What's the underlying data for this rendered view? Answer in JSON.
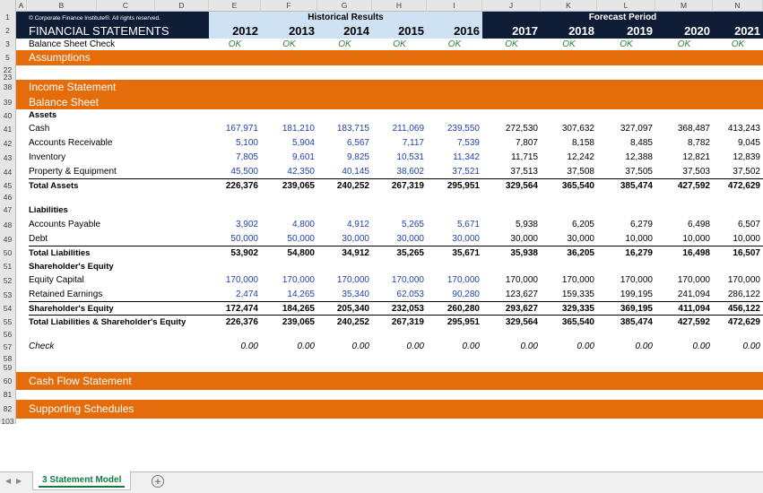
{
  "columns": [
    "A",
    "B",
    "C",
    "D",
    "E",
    "F",
    "G",
    "H",
    "I",
    "J",
    "K",
    "L",
    "M",
    "N"
  ],
  "header": {
    "copyright": "© Corporate Finance Institute®. All rights reserved.",
    "historical_label": "Historical Results",
    "forecast_label": "Forecast Period",
    "title": "FINANCIAL STATEMENTS",
    "years": [
      "2012",
      "2013",
      "2014",
      "2015",
      "2016",
      "2017",
      "2018",
      "2019",
      "2020",
      "2021"
    ]
  },
  "check_row": {
    "label": "Balance Sheet Check",
    "values": [
      "OK",
      "OK",
      "OK",
      "OK",
      "OK",
      "OK",
      "OK",
      "OK",
      "OK",
      "OK"
    ]
  },
  "sections": {
    "assumptions": "Assumptions",
    "income_statement": "Income Statement",
    "balance_sheet": "Balance Sheet",
    "cash_flow": "Cash Flow Statement",
    "supporting": "Supporting Schedules"
  },
  "rows": [
    {
      "n": "1"
    },
    {
      "n": "2"
    },
    {
      "n": "3"
    },
    {
      "n": "5"
    },
    {
      "n": "22"
    },
    {
      "n": "23"
    },
    {
      "n": "38"
    },
    {
      "n": "39"
    },
    {
      "n": "40"
    },
    {
      "n": "41"
    },
    {
      "n": "42"
    },
    {
      "n": "43"
    },
    {
      "n": "44"
    },
    {
      "n": "45"
    },
    {
      "n": "46"
    },
    {
      "n": "47"
    },
    {
      "n": "48"
    },
    {
      "n": "49"
    },
    {
      "n": "50"
    },
    {
      "n": "51"
    },
    {
      "n": "52"
    },
    {
      "n": "53"
    },
    {
      "n": "54"
    },
    {
      "n": "55"
    },
    {
      "n": "56"
    },
    {
      "n": "57"
    },
    {
      "n": "58"
    },
    {
      "n": "59"
    },
    {
      "n": "60"
    },
    {
      "n": "81"
    },
    {
      "n": "82"
    },
    {
      "n": "103"
    }
  ],
  "assets_header": "Assets",
  "liabilities_header": "Liabilities",
  "equity_header": "Shareholder's Equity",
  "check_label": "Check",
  "check_values": [
    "0.00",
    "0.00",
    "0.00",
    "0.00",
    "0.00",
    "0.00",
    "0.00",
    "0.00",
    "0.00",
    "0.00"
  ],
  "lines": {
    "cash": {
      "label": "Cash",
      "values": [
        "167,971",
        "181,210",
        "183,715",
        "211,069",
        "239,550",
        "272,530",
        "307,632",
        "327,097",
        "368,487",
        "413,243"
      ]
    },
    "ar": {
      "label": "Accounts Receivable",
      "values": [
        "5,100",
        "5,904",
        "6,567",
        "7,117",
        "7,539",
        "7,807",
        "8,158",
        "8,485",
        "8,782",
        "9,045"
      ]
    },
    "inventory": {
      "label": "Inventory",
      "values": [
        "7,805",
        "9,601",
        "9,825",
        "10,531",
        "11,342",
        "11,715",
        "12,242",
        "12,388",
        "12,821",
        "12,839"
      ]
    },
    "ppe": {
      "label": "Property & Equipment",
      "values": [
        "45,500",
        "42,350",
        "40,145",
        "38,602",
        "37,521",
        "37,513",
        "37,508",
        "37,505",
        "37,503",
        "37,502"
      ]
    },
    "total_assets": {
      "label": "Total Assets",
      "values": [
        "226,376",
        "239,065",
        "240,252",
        "267,319",
        "295,951",
        "329,564",
        "365,540",
        "385,474",
        "427,592",
        "472,629"
      ]
    },
    "ap": {
      "label": "Accounts Payable",
      "values": [
        "3,902",
        "4,800",
        "4,912",
        "5,265",
        "5,671",
        "5,938",
        "6,205",
        "6,279",
        "6,498",
        "6,507"
      ]
    },
    "debt": {
      "label": "Debt",
      "values": [
        "50,000",
        "50,000",
        "30,000",
        "30,000",
        "30,000",
        "30,000",
        "30,000",
        "10,000",
        "10,000",
        "10,000"
      ]
    },
    "total_liab": {
      "label": "Total Liabilities",
      "values": [
        "53,902",
        "54,800",
        "34,912",
        "35,265",
        "35,671",
        "35,938",
        "36,205",
        "16,279",
        "16,498",
        "16,507"
      ]
    },
    "equity_capital": {
      "label": "Equity Capital",
      "values": [
        "170,000",
        "170,000",
        "170,000",
        "170,000",
        "170,000",
        "170,000",
        "170,000",
        "170,000",
        "170,000",
        "170,000"
      ]
    },
    "retained": {
      "label": "Retained Earnings",
      "values": [
        "2,474",
        "14,265",
        "35,340",
        "62,053",
        "90,280",
        "123,627",
        "159,335",
        "199,195",
        "241,094",
        "286,122"
      ]
    },
    "total_equity": {
      "label": "Shareholder's Equity",
      "values": [
        "172,474",
        "184,265",
        "205,340",
        "232,053",
        "260,280",
        "293,627",
        "329,335",
        "369,195",
        "411,094",
        "456,122"
      ]
    },
    "total_le": {
      "label": "Total Liabilities & Shareholder's Equity",
      "values": [
        "226,376",
        "239,065",
        "240,252",
        "267,319",
        "295,951",
        "329,564",
        "365,540",
        "385,474",
        "427,592",
        "472,629"
      ]
    }
  },
  "tabs": {
    "sheet": "3 Statement Model",
    "add": "+"
  },
  "colors": {
    "orange": "#e46c0a",
    "navy": "#0f1c36",
    "light_blue": "#cfe2f3",
    "input_blue": "#1f3fa8",
    "ok_green": "#2e7d32"
  }
}
